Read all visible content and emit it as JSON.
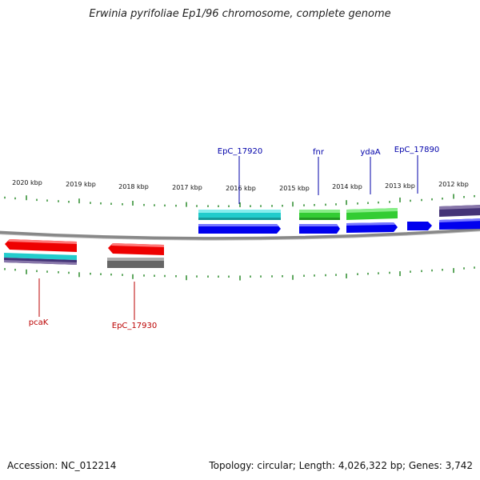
{
  "title": "Erwinia pyrifoliae Ep1/96 chromosome, complete genome",
  "footer": {
    "accession": "Accession: NC_012214",
    "summary": "Topology: circular; Length: 4,026,322 bp; Genes: 3,742"
  },
  "scale_labels": [
    "2020 kbp",
    "2019 kbp",
    "2018 kbp",
    "2017 kbp",
    "2016 kbp",
    "2015 kbp",
    "2014 kbp",
    "2013 kbp",
    "2012 kbp"
  ],
  "gene_labels": {
    "top": [
      "EpC_17920",
      "fnr",
      "ydaA",
      "EpC_17890"
    ],
    "bottom": [
      "pcaK",
      "EpC_17930"
    ]
  },
  "colors": {
    "blue": "#0000ee",
    "red": "#ee0000",
    "cyan": "#22cccc",
    "green": "#33cc33",
    "gray": "#666666",
    "navy": "#443377",
    "backbone": "#888888",
    "tick": "#2a8a2a",
    "label_blue": "#0000aa",
    "label_red": "#bb0000"
  }
}
